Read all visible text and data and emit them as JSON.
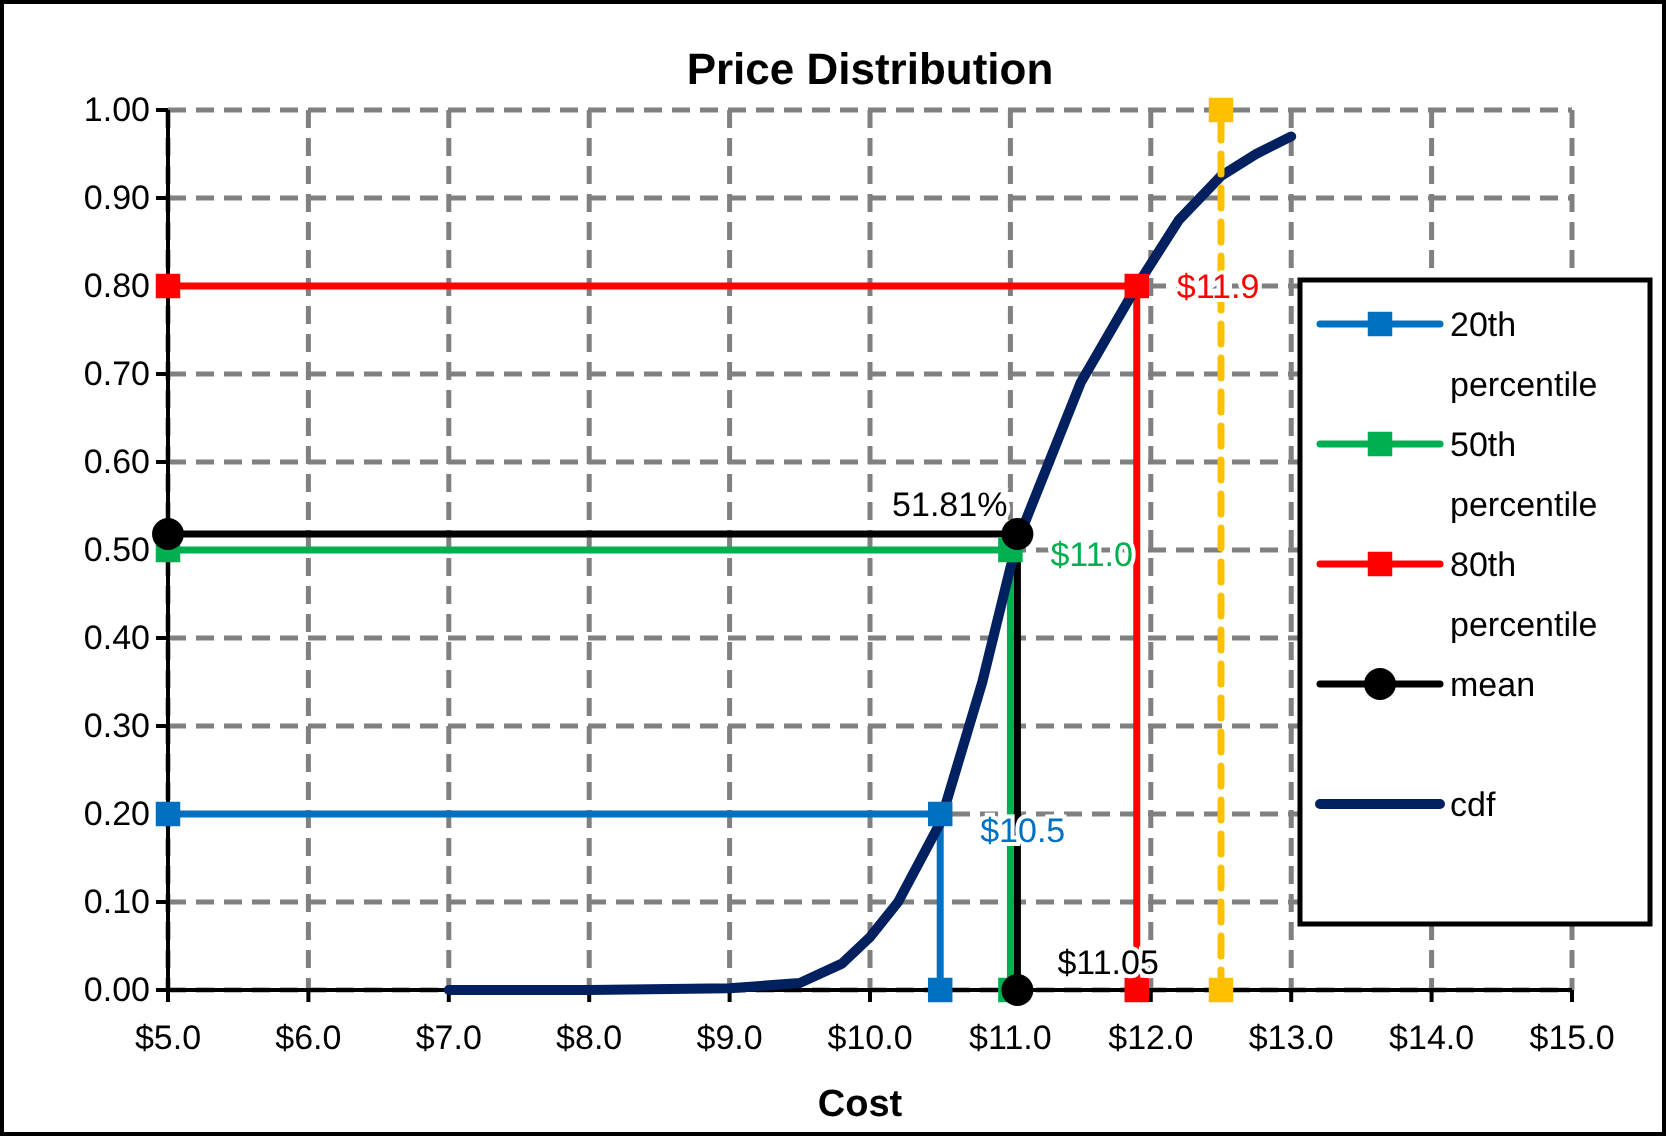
{
  "chart_data": {
    "type": "line",
    "title": "Price Distribution",
    "xlabel": "Cost",
    "xlim": [
      5,
      15
    ],
    "xticks": [
      {
        "value": 5,
        "label": "$5.0"
      },
      {
        "value": 6,
        "label": "$6.0"
      },
      {
        "value": 7,
        "label": "$7.0"
      },
      {
        "value": 8,
        "label": "$8.0"
      },
      {
        "value": 9,
        "label": "$9.0"
      },
      {
        "value": 10,
        "label": "$10.0"
      },
      {
        "value": 11,
        "label": "$11.0"
      },
      {
        "value": 12,
        "label": "$12.0"
      },
      {
        "value": 13,
        "label": "$13.0"
      },
      {
        "value": 14,
        "label": "$14.0"
      },
      {
        "value": 15,
        "label": "$15.0"
      }
    ],
    "ylim": [
      0,
      1
    ],
    "yticks": [
      {
        "value": 0,
        "label": "0.00"
      },
      {
        "value": 0.1,
        "label": "0.10"
      },
      {
        "value": 0.2,
        "label": "0.20"
      },
      {
        "value": 0.3,
        "label": "0.30"
      },
      {
        "value": 0.4,
        "label": "0.40"
      },
      {
        "value": 0.5,
        "label": "0.50"
      },
      {
        "value": 0.6,
        "label": "0.60"
      },
      {
        "value": 0.7,
        "label": "0.70"
      },
      {
        "value": 0.8,
        "label": "0.80"
      },
      {
        "value": 0.9,
        "label": "0.90"
      },
      {
        "value": 1,
        "label": "1.00"
      }
    ],
    "grid": true,
    "legend": "right",
    "series": [
      {
        "name": "20th percentile",
        "color": "#0070c0",
        "marker": "square",
        "x": [
          5,
          10.5,
          10.5
        ],
        "values": [
          0.2,
          0.2,
          0
        ]
      },
      {
        "name": "50th percentile",
        "color": "#00b050",
        "marker": "square",
        "x": [
          5,
          11.0,
          11.0
        ],
        "values": [
          0.5,
          0.5,
          0
        ]
      },
      {
        "name": "80th percentile",
        "color": "#ff0000",
        "marker": "square",
        "x": [
          5,
          11.9,
          11.9
        ],
        "values": [
          0.8,
          0.8,
          0
        ]
      },
      {
        "name": "mean",
        "color": "#000000",
        "marker": "circle",
        "x": [
          5,
          11.05,
          11.05
        ],
        "values": [
          0.5181,
          0.5181,
          0
        ]
      },
      {
        "name": "cdf",
        "color": "#002060",
        "marker": "none",
        "x": [
          7,
          8,
          9,
          9.5,
          9.8,
          10.0,
          10.2,
          10.5,
          10.8,
          11.0,
          11.1,
          11.25,
          11.5,
          11.9,
          12.2,
          12.5,
          12.75,
          13
        ],
        "values": [
          0,
          0,
          0.002,
          0.008,
          0.03,
          0.06,
          0.1,
          0.19,
          0.35,
          0.48,
          0.53,
          0.59,
          0.69,
          0.8,
          0.875,
          0.925,
          0.95,
          0.97
        ]
      },
      {
        "color": "#ffc000",
        "marker": "square",
        "line_style": "dashed",
        "x": [
          12.5,
          12.5
        ],
        "values": [
          0,
          1
        ]
      }
    ],
    "annotations": [
      {
        "text": "51.81%",
        "x": 11.05,
        "y": 0.5181
      },
      {
        "text": "$11.0",
        "x": 11.0,
        "y": 0.5
      },
      {
        "text": "$10.5",
        "x": 10.5,
        "y": 0.2
      },
      {
        "text": "$11.9",
        "x": 11.9,
        "y": 0.8
      },
      {
        "text": "$11.05",
        "x": 11.05,
        "y": 0
      }
    ]
  }
}
